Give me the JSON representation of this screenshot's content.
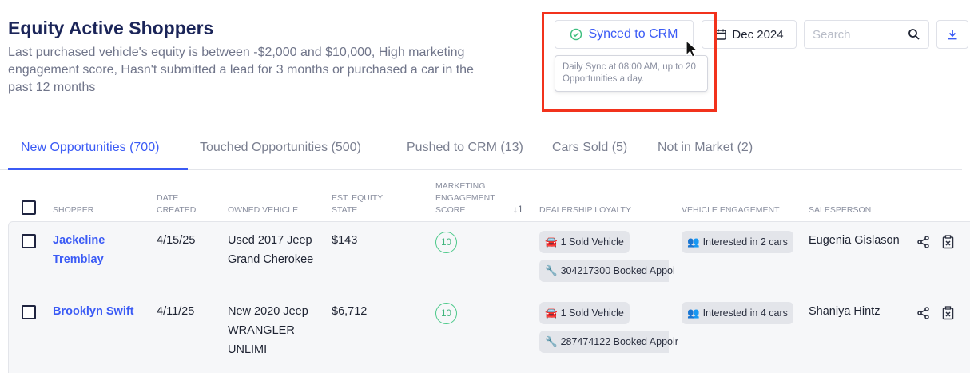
{
  "header": {
    "title": "Equity Active Shoppers",
    "subtitle": "Last purchased vehicle's equity is between -$2,000 and $10,000, High marketing engagement score, Hasn't submitted a lead for 3 months or purchased a car in the past 12 months"
  },
  "toolbar": {
    "sync_label": "Synced to CRM",
    "sync_tooltip": "Daily Sync at 08:00 AM, up to 20 Opportunities a day.",
    "date_label": "Dec 2024",
    "search_placeholder": "Search"
  },
  "colors": {
    "accent": "#3b5bf5",
    "annotation": "#f2321c",
    "score": "#4cc98a"
  },
  "tabs": [
    {
      "label": "New Opportunities (700)",
      "active": true
    },
    {
      "label": "Touched Opportunities (500)"
    },
    {
      "label": "Pushed to CRM (13)"
    },
    {
      "label": "Cars Sold (5)"
    },
    {
      "label": "Not in Market (2)"
    }
  ],
  "columns": {
    "shopper": "Shopper",
    "date_created": "Date Created",
    "owned_vehicle": "Owned Vehicle",
    "equity": "Est. Equity State",
    "score": "Marketing Engagement Score",
    "sort_indicator": "↓1",
    "loyalty": "Dealership Loyalty",
    "vehicle_engagement": "Vehicle Engagement",
    "salesperson": "Salesperson"
  },
  "rows": [
    {
      "shopper": "Jackeline Tremblay",
      "date": "4/15/25",
      "vehicle": "Used 2017 Jeep Grand Cherokee",
      "equity": "$143",
      "score": "10",
      "loyalty": [
        "1 Sold Vehicle",
        "304217300 Booked Appoi"
      ],
      "engagement": "Interested in 2 cars",
      "salesperson": "Eugenia Gislason"
    },
    {
      "shopper": "Brooklyn Swift",
      "date": "4/11/25",
      "vehicle": "New 2020 Jeep WRANGLER UNLIMI",
      "equity": "$6,712",
      "score": "10",
      "loyalty": [
        "1 Sold Vehicle",
        "287474122 Booked Appoir"
      ],
      "engagement": "Interested in 4 cars",
      "salesperson": "Shaniya Hintz"
    }
  ]
}
